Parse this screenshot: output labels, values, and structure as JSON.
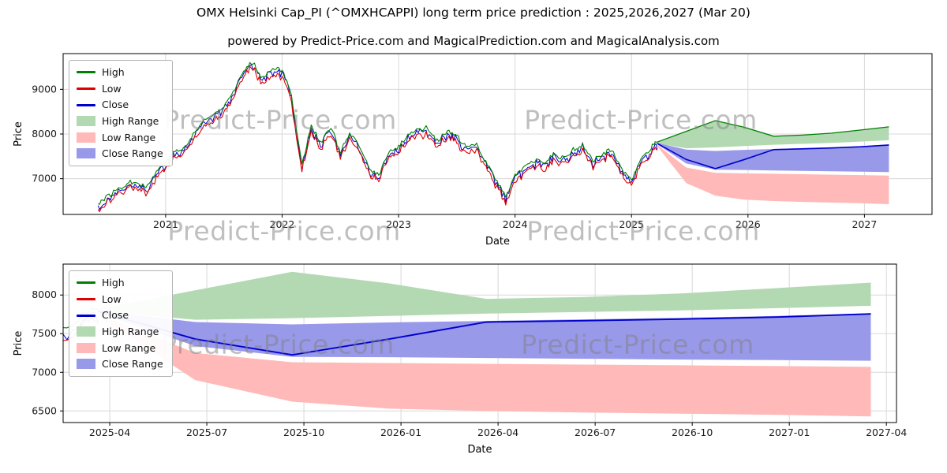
{
  "title": "OMX Helsinki Cap_PI (^OMXHCAPPI) long term price prediction : 2025,2026,2027 (Mar 20)",
  "subtitle": "powered by Predict-Price.com and MagicalPrediction.com and MagicalAnalysis.com",
  "watermark": {
    "text": "Predict-Price.com"
  },
  "colors": {
    "high_line": "#008000",
    "low_line": "#e00000",
    "close_line": "#0000cc",
    "high_range_fill": "#b3d9b3",
    "low_range_fill": "#ffb9b9",
    "close_range_fill": "#9999ea",
    "grid": "#d8d8d8",
    "axis": "#000000",
    "tick_text": "#1a1a1a"
  },
  "legend": {
    "items": [
      {
        "label": "High",
        "swatch": "line",
        "color": "high_line"
      },
      {
        "label": "Low",
        "swatch": "line",
        "color": "low_line"
      },
      {
        "label": "Close",
        "swatch": "line",
        "color": "close_line"
      },
      {
        "label": "High Range",
        "swatch": "patch",
        "color": "high_range_fill"
      },
      {
        "label": "Low Range",
        "swatch": "patch",
        "color": "low_range_fill"
      },
      {
        "label": "Close Range",
        "swatch": "patch",
        "color": "close_range_fill"
      }
    ]
  },
  "chart_data": [
    {
      "type": "line",
      "name": "history-with-prediction",
      "xlabel": "Date",
      "ylabel": "Price",
      "xlim": [
        2020.12,
        2027.58
      ],
      "ylim": [
        6200,
        9800
      ],
      "xticks": [
        {
          "v": 2021,
          "label": "2021"
        },
        {
          "v": 2022,
          "label": "2022"
        },
        {
          "v": 2023,
          "label": "2023"
        },
        {
          "v": 2024,
          "label": "2024"
        },
        {
          "v": 2025,
          "label": "2025"
        },
        {
          "v": 2026,
          "label": "2026"
        },
        {
          "v": 2027,
          "label": "2027"
        }
      ],
      "yticks": [
        {
          "v": 7000,
          "label": "7000"
        },
        {
          "v": 8000,
          "label": "8000"
        },
        {
          "v": 9000,
          "label": "9000"
        }
      ],
      "series": {
        "historical": {
          "x": [
            2020.42,
            2020.5,
            2020.58,
            2020.67,
            2020.75,
            2020.83,
            2020.92,
            2021.0,
            2021.08,
            2021.17,
            2021.25,
            2021.33,
            2021.42,
            2021.5,
            2021.58,
            2021.67,
            2021.75,
            2021.83,
            2021.92,
            2022.0,
            2022.08,
            2022.17,
            2022.25,
            2022.33,
            2022.42,
            2022.5,
            2022.58,
            2022.67,
            2022.75,
            2022.83,
            2022.92,
            2023.0,
            2023.08,
            2023.17,
            2023.25,
            2023.33,
            2023.42,
            2023.5,
            2023.58,
            2023.67,
            2023.75,
            2023.83,
            2023.92,
            2024.0,
            2024.08,
            2024.17,
            2024.25,
            2024.33,
            2024.42,
            2024.5,
            2024.58,
            2024.67,
            2024.75,
            2024.83,
            2024.92,
            2025.0,
            2025.08,
            2025.17,
            2025.22
          ],
          "high": [
            6450,
            6600,
            6750,
            6900,
            6950,
            6800,
            7150,
            7400,
            7600,
            7700,
            8050,
            8300,
            8450,
            8650,
            8950,
            9400,
            9620,
            9250,
            9500,
            9420,
            8900,
            7300,
            8200,
            7800,
            8150,
            7600,
            8000,
            7700,
            7200,
            7100,
            7600,
            7700,
            8000,
            8100,
            8150,
            7850,
            8050,
            7950,
            7700,
            7750,
            7400,
            7000,
            6600,
            7100,
            7250,
            7400,
            7350,
            7550,
            7450,
            7650,
            7750,
            7400,
            7550,
            7650,
            7200,
            6950,
            7400,
            7700,
            7820
          ],
          "noise_amp": 55,
          "low_spread_min": 80,
          "low_spread_max": 190
        },
        "prediction": {
          "x": [
            2025.22,
            2025.47,
            2025.72,
            2025.97,
            2026.22,
            2026.47,
            2026.72,
            2026.97,
            2027.21
          ],
          "high_range_top": [
            7820,
            8060,
            8300,
            8150,
            7950,
            7975,
            8020,
            8090,
            8160
          ],
          "high_range_bottom": [
            7790,
            7680,
            7700,
            7730,
            7760,
            7780,
            7800,
            7830,
            7860
          ],
          "low_range_top": [
            7760,
            7250,
            7130,
            7120,
            7110,
            7100,
            7090,
            7080,
            7070
          ],
          "low_range_bottom": [
            7730,
            6900,
            6620,
            6530,
            6500,
            6480,
            6465,
            6450,
            6430
          ],
          "close_range_top": [
            7800,
            7650,
            7620,
            7645,
            7665,
            7685,
            7705,
            7730,
            7765
          ],
          "close_range_bottom": [
            7770,
            7340,
            7200,
            7195,
            7185,
            7175,
            7165,
            7158,
            7150
          ],
          "close": [
            7790,
            7430,
            7225,
            7430,
            7650,
            7668,
            7688,
            7715,
            7755
          ]
        }
      }
    },
    {
      "type": "line",
      "name": "prediction-detail",
      "series_ref": 0,
      "xlabel": "Date",
      "ylabel": "Price",
      "xlim": [
        2025.13,
        2027.276
      ],
      "ylim": [
        6350,
        8400
      ],
      "xticks": [
        {
          "v": 2025.25,
          "label": "2025-04"
        },
        {
          "v": 2025.5,
          "label": "2025-07"
        },
        {
          "v": 2025.75,
          "label": "2025-10"
        },
        {
          "v": 2026.0,
          "label": "2026-01"
        },
        {
          "v": 2026.25,
          "label": "2026-04"
        },
        {
          "v": 2026.5,
          "label": "2026-07"
        },
        {
          "v": 2026.75,
          "label": "2026-10"
        },
        {
          "v": 2027.0,
          "label": "2027-01"
        },
        {
          "v": 2027.25,
          "label": "2027-04"
        }
      ],
      "yticks": [
        {
          "v": 6500,
          "label": "6500"
        },
        {
          "v": 7000,
          "label": "7000"
        },
        {
          "v": 7500,
          "label": "7500"
        },
        {
          "v": 8000,
          "label": "8000"
        }
      ]
    }
  ]
}
